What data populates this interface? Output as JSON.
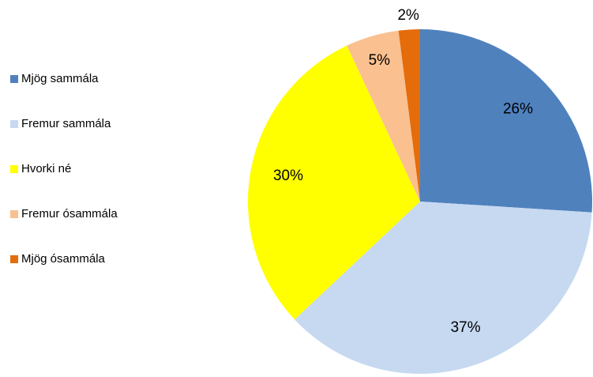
{
  "chart_data": {
    "type": "pie",
    "categories": [
      "Mjög sammála",
      "Fremur sammála",
      "Hvorki né",
      "Fremur ósammála",
      "Mjög ósammála"
    ],
    "values": [
      26,
      37,
      30,
      5,
      2
    ],
    "value_labels": [
      "26%",
      "37%",
      "30%",
      "5%",
      "2%"
    ],
    "colors": [
      "#4f81bd",
      "#c6d9f1",
      "#ffff00",
      "#fac090",
      "#e46c0a"
    ],
    "legend": "left"
  }
}
